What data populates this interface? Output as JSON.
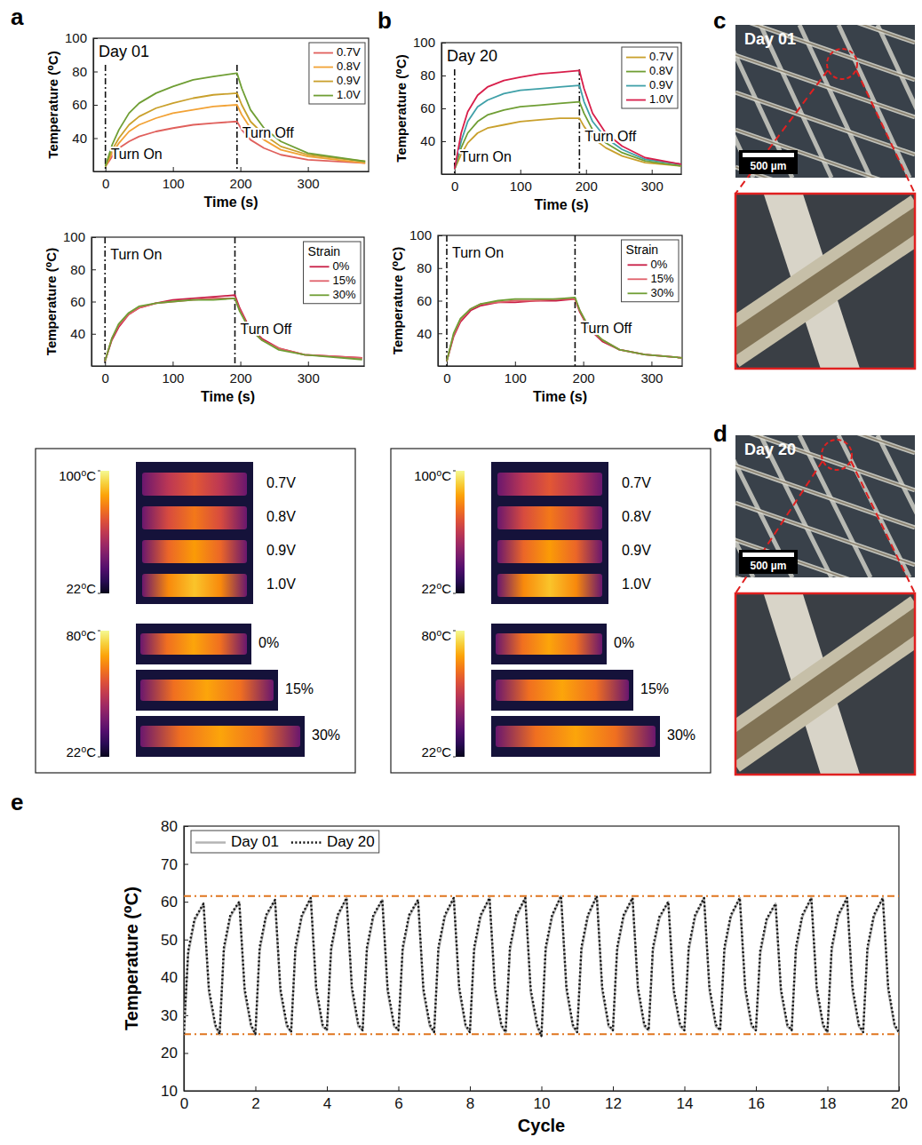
{
  "panel_labels": [
    "a",
    "b",
    "c",
    "d",
    "e"
  ],
  "chart_data": [
    {
      "type": "line",
      "title": "Day 01",
      "x_label": "Time (s)",
      "y_label": "Temperature (⁰C)",
      "xlim": [
        -18,
        390
      ],
      "xticks": [
        0,
        100,
        200,
        300
      ],
      "ylim": [
        20,
        100
      ],
      "yticks": [
        40,
        60,
        80,
        100
      ],
      "legend": "upper right",
      "annotations": [
        {
          "text": "Turn On",
          "x": 0
        },
        {
          "text": "Turn Off",
          "x": 195
        }
      ],
      "x": [
        0,
        10,
        20,
        35,
        50,
        75,
        100,
        130,
        160,
        195,
        202,
        215,
        235,
        260,
        300,
        385
      ],
      "series": [
        {
          "name": "0.7V",
          "color": "#e0605c",
          "values": [
            23,
            29,
            34,
            38,
            41,
            44,
            46,
            48,
            49,
            50,
            45,
            39,
            34,
            30,
            27,
            25
          ]
        },
        {
          "name": "0.8V",
          "color": "#f2a235",
          "values": [
            23,
            31,
            37,
            44,
            48,
            52,
            55,
            57,
            59,
            60,
            54,
            46,
            39,
            33,
            29,
            25
          ]
        },
        {
          "name": "0.9V",
          "color": "#c9a02c",
          "values": [
            23,
            33,
            40,
            48,
            53,
            58,
            61,
            64,
            66,
            67,
            60,
            50,
            42,
            35,
            30,
            26
          ]
        },
        {
          "name": "1.0V",
          "color": "#6f9e34",
          "values": [
            23,
            36,
            45,
            55,
            61,
            67,
            71,
            75,
            77,
            79,
            70,
            57,
            46,
            38,
            31,
            26
          ]
        }
      ]
    },
    {
      "type": "line",
      "title": "Day 20",
      "x_label": "Time (s)",
      "y_label": "Temperature (⁰C)",
      "xlim": [
        -20,
        345
      ],
      "xticks": [
        0,
        100,
        200,
        300
      ],
      "ylim": [
        20,
        100
      ],
      "yticks": [
        40,
        60,
        80,
        100
      ],
      "legend": "upper right",
      "annotations": [
        {
          "text": "Turn On",
          "x": 0
        },
        {
          "text": "Turn Off",
          "x": 190
        }
      ],
      "x": [
        0,
        10,
        20,
        35,
        50,
        75,
        100,
        130,
        160,
        190,
        197,
        210,
        230,
        255,
        290,
        345
      ],
      "series": [
        {
          "name": "0.7V",
          "color": "#c9a02c",
          "values": [
            23,
            32,
            39,
            45,
            48,
            50,
            52,
            53,
            54,
            54,
            49,
            42,
            36,
            31,
            27,
            25
          ]
        },
        {
          "name": "0.8V",
          "color": "#6f9e34",
          "values": [
            23,
            36,
            45,
            52,
            56,
            59,
            61,
            62,
            63,
            64,
            57,
            47,
            39,
            33,
            28,
            25
          ]
        },
        {
          "name": "0.9V",
          "color": "#3fa0a8",
          "values": [
            23,
            40,
            52,
            61,
            65,
            69,
            71,
            72,
            73,
            74,
            64,
            52,
            42,
            35,
            29,
            26
          ]
        },
        {
          "name": "1.0V",
          "color": "#d81e4a",
          "values": [
            23,
            45,
            58,
            68,
            73,
            77,
            79,
            81,
            82,
            83,
            72,
            57,
            45,
            37,
            30,
            26
          ]
        }
      ]
    },
    {
      "type": "line",
      "x_label": "Time (s)",
      "y_label": "Temperature (⁰C)",
      "xlim": [
        -20,
        383
      ],
      "xticks": [
        0,
        100,
        200,
        300
      ],
      "ylim": [
        20,
        100
      ],
      "yticks": [
        40,
        60,
        80,
        100
      ],
      "legend": "upper right",
      "legend_title": "Strain",
      "annotations": [
        {
          "text": "Turn On",
          "x": 0
        },
        {
          "text": "Turn Off",
          "x": 192
        }
      ],
      "x": [
        0,
        10,
        20,
        35,
        50,
        75,
        100,
        130,
        160,
        192,
        199,
        212,
        232,
        257,
        295,
        380
      ],
      "series": [
        {
          "name": "0%",
          "color": "#c81e46",
          "values": [
            23,
            36,
            44,
            52,
            56,
            59,
            61,
            62,
            63,
            64,
            56,
            45,
            37,
            31,
            27,
            25
          ]
        },
        {
          "name": "15%",
          "color": "#e0606a",
          "values": [
            23,
            37,
            45,
            52,
            56,
            59,
            60,
            61,
            62,
            62,
            55,
            44,
            36,
            31,
            27,
            25
          ]
        },
        {
          "name": "30%",
          "color": "#6f9e34",
          "values": [
            23,
            37,
            46,
            53,
            57,
            59,
            60,
            61,
            61,
            62,
            54,
            44,
            36,
            30,
            27,
            24
          ]
        }
      ]
    },
    {
      "type": "line",
      "x_label": "Time (s)",
      "y_label": "Temperature (⁰C)",
      "xlim": [
        -13,
        345
      ],
      "xticks": [
        0,
        100,
        200,
        300
      ],
      "ylim": [
        20,
        100
      ],
      "yticks": [
        40,
        60,
        80,
        100
      ],
      "legend": "upper right",
      "legend_title": "Strain",
      "annotations": [
        {
          "text": "Turn On",
          "x": 0
        },
        {
          "text": "Turn Off",
          "x": 188
        }
      ],
      "x": [
        0,
        10,
        20,
        35,
        50,
        75,
        100,
        130,
        160,
        188,
        195,
        208,
        228,
        253,
        290,
        345
      ],
      "series": [
        {
          "name": "0%",
          "color": "#c81e46",
          "values": [
            23,
            38,
            47,
            54,
            57,
            59,
            59,
            60,
            60,
            61,
            53,
            43,
            35,
            30,
            27,
            25
          ]
        },
        {
          "name": "15%",
          "color": "#e0606a",
          "values": [
            23,
            39,
            48,
            55,
            58,
            59,
            60,
            60,
            61,
            61,
            54,
            43,
            36,
            30,
            27,
            25
          ]
        },
        {
          "name": "30%",
          "color": "#6f9e34",
          "values": [
            23,
            40,
            49,
            55,
            58,
            60,
            61,
            61,
            61,
            62,
            54,
            44,
            36,
            30,
            27,
            25
          ]
        }
      ]
    },
    {
      "type": "line",
      "x_label": "Cycle",
      "y_label": "Temperature (⁰C)",
      "xlim": [
        0,
        20
      ],
      "xticks": [
        0,
        2,
        4,
        6,
        8,
        10,
        12,
        14,
        16,
        18,
        20
      ],
      "ylim": [
        10,
        80
      ],
      "yticks": [
        10,
        20,
        30,
        40,
        50,
        60,
        70,
        80
      ],
      "legend": "upper left",
      "reference_lines": [
        61.5,
        25
      ],
      "x": [
        0,
        0.12,
        0.3,
        0.55,
        0.7,
        0.88,
        1,
        1.12,
        1.3,
        1.55,
        1.7,
        1.88,
        2,
        2.12,
        2.3,
        2.55,
        2.7,
        2.88,
        3,
        3.12,
        3.3,
        3.55,
        3.7,
        3.88,
        4,
        4.12,
        4.3,
        4.55,
        4.7,
        4.88,
        5,
        5.12,
        5.3,
        5.55,
        5.7,
        5.88,
        6,
        6.12,
        6.3,
        6.55,
        6.7,
        6.88,
        7,
        7.12,
        7.3,
        7.55,
        7.7,
        7.88,
        8,
        8.12,
        8.3,
        8.55,
        8.7,
        8.88,
        9,
        9.12,
        9.3,
        9.55,
        9.7,
        9.88,
        10,
        10.12,
        10.3,
        10.55,
        10.7,
        10.88,
        11,
        11.12,
        11.3,
        11.55,
        11.7,
        11.88,
        12,
        12.12,
        12.3,
        12.55,
        12.7,
        12.88,
        13,
        13.12,
        13.3,
        13.55,
        13.7,
        13.88,
        14,
        14.12,
        14.3,
        14.55,
        14.7,
        14.88,
        15,
        15.12,
        15.3,
        15.55,
        15.7,
        15.88,
        16,
        16.12,
        16.3,
        16.55,
        16.7,
        16.88,
        17,
        17.12,
        17.3,
        17.55,
        17.7,
        17.88,
        18,
        18.12,
        18.3,
        18.55,
        18.7,
        18.88,
        19,
        19.12,
        19.3,
        19.55,
        19.7,
        19.88,
        20
      ],
      "series": [
        {
          "name": "Day 01",
          "color": "#b4b4b4",
          "line_style": "solid",
          "values": [
            25,
            46,
            55,
            59.5,
            36,
            27,
            25,
            47,
            56,
            60,
            36,
            27,
            25,
            47,
            56,
            60.5,
            36,
            27,
            25.5,
            47,
            56,
            61,
            36.5,
            27,
            26,
            47,
            56,
            61,
            36.5,
            27,
            26,
            47,
            56,
            60.5,
            36,
            27,
            26,
            47,
            56,
            60.5,
            36,
            27,
            25.5,
            47,
            56,
            61,
            36.5,
            27,
            25.5,
            47,
            56,
            61,
            36.5,
            27,
            25.5,
            47,
            56,
            61,
            36,
            27,
            24.5,
            47,
            56,
            61.5,
            36.5,
            27,
            25.5,
            47,
            56,
            61.5,
            36.5,
            27,
            26,
            47,
            56,
            61,
            36.5,
            27,
            26,
            47,
            55.5,
            60,
            36,
            27,
            26,
            47,
            56,
            61,
            36.5,
            27,
            26,
            47,
            56,
            61,
            36.5,
            27,
            26,
            46,
            55,
            59.5,
            36,
            27,
            26,
            47,
            56,
            61,
            36.5,
            27,
            25.5,
            47,
            56,
            61,
            36.5,
            27,
            25.5,
            47,
            56,
            61,
            36.5,
            27,
            25.5
          ]
        },
        {
          "name": "Day 20",
          "color": "#111111",
          "line_style": "dotted",
          "values": [
            25,
            47,
            55.5,
            59.5,
            37,
            27.5,
            25,
            48,
            56.5,
            60,
            37,
            27.5,
            25,
            48,
            56.5,
            60.5,
            37,
            27.5,
            25.5,
            48,
            56.5,
            61,
            37.5,
            27.5,
            26,
            48,
            56.5,
            61,
            37.5,
            27.5,
            26,
            48,
            56.5,
            60.5,
            37,
            27.5,
            26,
            48,
            56.5,
            60.5,
            37,
            27.5,
            25.5,
            48,
            56.5,
            61,
            37.5,
            27.5,
            25.5,
            48,
            56.5,
            61,
            37.5,
            27.5,
            25.5,
            48,
            56.5,
            61,
            37,
            27.5,
            24.5,
            48,
            56.5,
            61.5,
            37.5,
            27.5,
            25.5,
            48,
            56.5,
            61.5,
            37.5,
            27.5,
            26,
            48,
            56.5,
            61,
            37.5,
            27.5,
            26,
            48,
            56,
            60,
            37,
            27.5,
            26,
            48,
            56.5,
            61,
            37.5,
            27.5,
            26,
            48,
            56.5,
            61,
            37.5,
            27.5,
            26,
            47,
            55.5,
            59.5,
            37,
            27.5,
            26,
            48,
            56.5,
            61,
            37.5,
            27.5,
            25.5,
            48,
            56.5,
            61,
            37.5,
            27.5,
            25.5,
            48,
            56.5,
            61,
            37.5,
            27.5,
            25.5
          ]
        }
      ]
    }
  ],
  "thermal": [
    {
      "groups": [
        {
          "colorbar": {
            "range": [
              22,
              100
            ],
            "ticks": [
              {
                "value": 100,
                "label": "100⁰C"
              },
              {
                "value": 22,
                "label": "22⁰C"
              }
            ]
          },
          "labels": [
            "0.7V",
            "0.8V",
            "0.9V",
            "1.0V"
          ]
        },
        {
          "colorbar": {
            "range": [
              22,
              80
            ],
            "ticks": [
              {
                "value": 80,
                "label": "80⁰C"
              },
              {
                "value": 22,
                "label": "22⁰C"
              }
            ]
          },
          "labels": [
            "0%",
            "15%",
            "30%"
          ]
        }
      ]
    },
    {
      "groups": [
        {
          "colorbar": {
            "range": [
              22,
              100
            ],
            "ticks": [
              {
                "value": 100,
                "label": "100⁰C"
              },
              {
                "value": 22,
                "label": "22⁰C"
              }
            ]
          },
          "labels": [
            "0.7V",
            "0.8V",
            "0.9V",
            "1.0V"
          ]
        },
        {
          "colorbar": {
            "range": [
              22,
              80
            ],
            "ticks": [
              {
                "value": 80,
                "label": "80⁰C"
              },
              {
                "value": 22,
                "label": "22⁰C"
              }
            ]
          },
          "labels": [
            "0%",
            "15%",
            "30%"
          ]
        }
      ]
    }
  ],
  "micrographs": [
    {
      "label": "Day 01",
      "scale_bar": "500 µm"
    },
    {
      "label": "Day 20",
      "scale_bar": "500 µm"
    }
  ]
}
